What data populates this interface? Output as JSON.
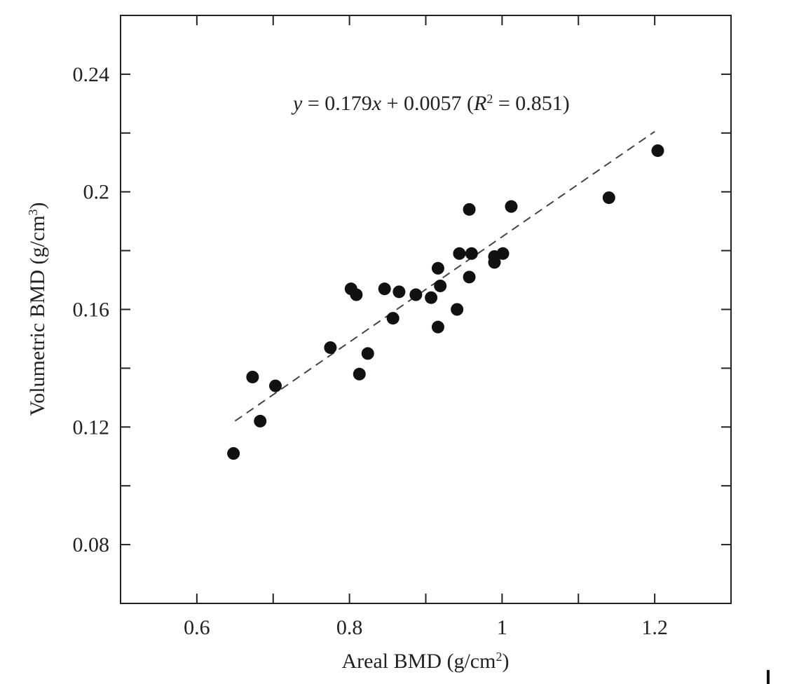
{
  "chart_data": {
    "type": "scatter",
    "title": "",
    "xlabel": "Areal BMD (g/cm",
    "xlabel_sup": "2",
    "xlabel_close": ")",
    "ylabel": "Volumetric BMD (g/cm",
    "ylabel_sup": "3",
    "ylabel_close": ")",
    "xlim": [
      0.5,
      1.3
    ],
    "ylim": [
      0.06,
      0.26
    ],
    "x_ticks": [
      0.6,
      0.8,
      1.0,
      1.2
    ],
    "x_tick_labels": [
      "0.6",
      "0.8",
      "1",
      "1.2"
    ],
    "x_minor_ticks": [
      0.7,
      0.9,
      1.1
    ],
    "y_ticks": [
      0.08,
      0.12,
      0.16,
      0.2,
      0.24
    ],
    "y_tick_labels": [
      "0.08",
      "0.12",
      "0.16",
      "0.2",
      "0.24"
    ],
    "y_minor_ticks": [
      0.1,
      0.14,
      0.18,
      0.22
    ],
    "grid": false,
    "equation": {
      "y": "y",
      "eq1": " = 0.179",
      "x": "x",
      "eq2": " + 0.0057 (",
      "R": "R",
      "sup": "2",
      "eq3": " = 0.851)"
    },
    "regression": {
      "slope": 0.179,
      "intercept": 0.0057,
      "r2": 0.851,
      "x_range": [
        0.65,
        1.2
      ]
    },
    "points": [
      {
        "x": 0.648,
        "y": 0.111
      },
      {
        "x": 0.673,
        "y": 0.137
      },
      {
        "x": 0.683,
        "y": 0.122
      },
      {
        "x": 0.703,
        "y": 0.134
      },
      {
        "x": 0.775,
        "y": 0.147
      },
      {
        "x": 0.802,
        "y": 0.167
      },
      {
        "x": 0.809,
        "y": 0.165
      },
      {
        "x": 0.813,
        "y": 0.138
      },
      {
        "x": 0.824,
        "y": 0.145
      },
      {
        "x": 0.846,
        "y": 0.167
      },
      {
        "x": 0.857,
        "y": 0.157
      },
      {
        "x": 0.865,
        "y": 0.166
      },
      {
        "x": 0.887,
        "y": 0.165
      },
      {
        "x": 0.907,
        "y": 0.164
      },
      {
        "x": 0.916,
        "y": 0.174
      },
      {
        "x": 0.916,
        "y": 0.154
      },
      {
        "x": 0.919,
        "y": 0.168
      },
      {
        "x": 0.941,
        "y": 0.16
      },
      {
        "x": 0.944,
        "y": 0.179
      },
      {
        "x": 0.957,
        "y": 0.194
      },
      {
        "x": 0.957,
        "y": 0.171
      },
      {
        "x": 0.96,
        "y": 0.179
      },
      {
        "x": 0.99,
        "y": 0.178
      },
      {
        "x": 0.99,
        "y": 0.176
      },
      {
        "x": 1.001,
        "y": 0.179
      },
      {
        "x": 1.012,
        "y": 0.195
      },
      {
        "x": 1.14,
        "y": 0.198
      },
      {
        "x": 1.204,
        "y": 0.214
      }
    ]
  }
}
